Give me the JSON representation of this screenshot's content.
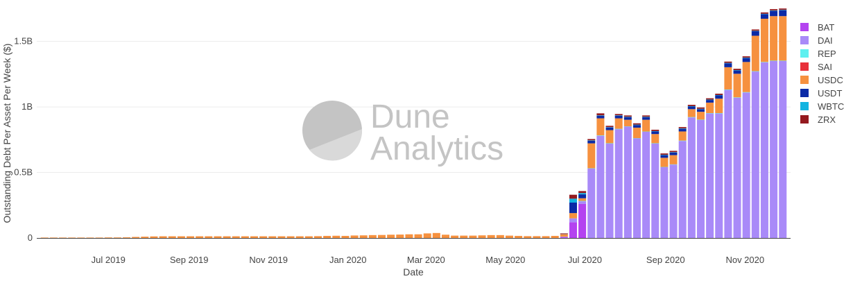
{
  "watermark": {
    "line1": "Dune",
    "line2": "Analytics"
  },
  "colors": {
    "BAT": "#b443f0",
    "DAI": "#a98af8",
    "REP": "#5ef0f0",
    "SAI": "#e8303a",
    "USDC": "#f6913f",
    "USDT": "#0b2aa6",
    "WBTC": "#12b3e0",
    "ZRX": "#941a1f"
  },
  "chart_data": {
    "type": "bar",
    "stacked": true,
    "title": "",
    "xlabel": "Date",
    "ylabel": "Outstanding Debt Per Asset Per Week ($)",
    "ylim": [
      0,
      1800000000
    ],
    "yticks": [
      0,
      500000000,
      1000000000,
      1500000000
    ],
    "ytick_labels": [
      "0",
      "0.5B",
      "1B",
      "1.5B"
    ],
    "xtick_labels": [
      "Jul 2019",
      "Sep 2019",
      "Nov 2019",
      "Jan 2020",
      "Mar 2020",
      "May 2020",
      "Jul 2020",
      "Sep 2020",
      "Nov 2020"
    ],
    "xtick_dates": [
      "2019-07-01",
      "2019-09-01",
      "2019-11-01",
      "2020-01-01",
      "2020-03-01",
      "2020-05-01",
      "2020-07-01",
      "2020-09-01",
      "2020-11-01"
    ],
    "x_range": [
      "2019-05-07",
      "2020-12-06"
    ],
    "grid": true,
    "legend_position": "right",
    "x": [
      "2019-05-13",
      "2019-05-20",
      "2019-05-27",
      "2019-06-03",
      "2019-06-10",
      "2019-06-17",
      "2019-06-24",
      "2019-07-01",
      "2019-07-08",
      "2019-07-15",
      "2019-07-22",
      "2019-07-29",
      "2019-08-05",
      "2019-08-12",
      "2019-08-19",
      "2019-08-26",
      "2019-09-02",
      "2019-09-09",
      "2019-09-16",
      "2019-09-23",
      "2019-09-30",
      "2019-10-07",
      "2019-10-14",
      "2019-10-21",
      "2019-10-28",
      "2019-11-04",
      "2019-11-11",
      "2019-11-18",
      "2019-11-25",
      "2019-12-02",
      "2019-12-09",
      "2019-12-16",
      "2019-12-23",
      "2019-12-30",
      "2020-01-06",
      "2020-01-13",
      "2020-01-20",
      "2020-01-27",
      "2020-02-03",
      "2020-02-10",
      "2020-02-17",
      "2020-02-24",
      "2020-03-02",
      "2020-03-09",
      "2020-03-16",
      "2020-03-23",
      "2020-03-30",
      "2020-04-06",
      "2020-04-13",
      "2020-04-20",
      "2020-04-27",
      "2020-05-04",
      "2020-05-11",
      "2020-05-18",
      "2020-05-25",
      "2020-06-01",
      "2020-06-08",
      "2020-06-15",
      "2020-06-22",
      "2020-06-29",
      "2020-07-06",
      "2020-07-13",
      "2020-07-20",
      "2020-07-27",
      "2020-08-03",
      "2020-08-10",
      "2020-08-17",
      "2020-08-24",
      "2020-08-31",
      "2020-09-07",
      "2020-09-14",
      "2020-09-21",
      "2020-09-28",
      "2020-10-05",
      "2020-10-12",
      "2020-10-19",
      "2020-10-26",
      "2020-11-02",
      "2020-11-09",
      "2020-11-16",
      "2020-11-23",
      "2020-11-30"
    ],
    "series": [
      {
        "name": "BAT",
        "values": [
          0,
          0,
          0,
          0,
          0,
          0,
          0,
          0,
          0,
          0,
          0,
          0,
          0,
          0,
          0,
          0,
          0,
          0,
          0,
          0,
          0,
          0,
          0,
          0,
          0,
          0,
          0,
          0,
          0,
          0,
          0,
          0,
          0,
          0,
          0,
          0,
          0,
          0,
          0,
          0,
          0,
          0,
          0,
          0,
          0,
          0,
          0,
          0,
          0,
          0,
          0,
          0,
          0,
          0,
          0,
          0,
          0,
          5000000,
          120000000,
          260000000,
          0,
          0,
          0,
          0,
          0,
          0,
          0,
          0,
          0,
          0,
          0,
          0,
          0,
          0,
          0,
          0,
          0,
          0,
          0,
          0,
          0,
          0
        ]
      },
      {
        "name": "DAI",
        "values": [
          0,
          0,
          0,
          0,
          0,
          0,
          0,
          0,
          0,
          0,
          0,
          0,
          0,
          0,
          0,
          0,
          0,
          0,
          0,
          0,
          0,
          0,
          0,
          0,
          0,
          0,
          0,
          0,
          0,
          0,
          0,
          0,
          0,
          0,
          0,
          0,
          0,
          0,
          0,
          0,
          0,
          0,
          0,
          0,
          0,
          0,
          0,
          0,
          0,
          0,
          0,
          0,
          0,
          0,
          0,
          0,
          0,
          5000000,
          30000000,
          20000000,
          530000000,
          780000000,
          720000000,
          830000000,
          850000000,
          760000000,
          810000000,
          720000000,
          540000000,
          560000000,
          740000000,
          920000000,
          900000000,
          950000000,
          950000000,
          1130000000,
          1070000000,
          1110000000,
          1270000000,
          1340000000,
          1350000000,
          1350000000
        ]
      },
      {
        "name": "REP",
        "values": [
          0,
          0,
          0,
          0,
          0,
          0,
          0,
          0,
          0,
          0,
          0,
          0,
          0,
          0,
          0,
          0,
          0,
          0,
          0,
          0,
          0,
          0,
          0,
          0,
          0,
          0,
          0,
          0,
          0,
          0,
          0,
          0,
          0,
          0,
          0,
          0,
          0,
          0,
          0,
          0,
          0,
          0,
          0,
          0,
          0,
          0,
          0,
          0,
          0,
          0,
          0,
          0,
          0,
          0,
          0,
          0,
          0,
          0,
          0,
          3000000,
          2000000,
          3000000,
          3000000,
          3000000,
          2000000,
          2000000,
          2000000,
          3000000,
          2000000,
          2000000,
          3000000,
          3000000,
          3000000,
          3000000,
          3000000,
          3000000,
          3000000,
          3000000,
          3000000,
          3000000,
          3000000,
          3000000
        ]
      },
      {
        "name": "SAI",
        "values": [
          0,
          0,
          0,
          0,
          0,
          0,
          0,
          0,
          0,
          0,
          0,
          0,
          0,
          0,
          0,
          0,
          0,
          0,
          0,
          0,
          0,
          0,
          0,
          0,
          0,
          0,
          0,
          0,
          0,
          0,
          0,
          0,
          0,
          0,
          0,
          0,
          0,
          0,
          0,
          0,
          0,
          0,
          0,
          0,
          0,
          0,
          0,
          0,
          0,
          0,
          0,
          0,
          0,
          0,
          0,
          0,
          0,
          0,
          0,
          0,
          0,
          0,
          0,
          0,
          0,
          0,
          0,
          0,
          0,
          0,
          0,
          0,
          0,
          0,
          0,
          0,
          0,
          0,
          0,
          0,
          0,
          0
        ]
      },
      {
        "name": "USDC",
        "values": [
          1000000,
          1000000,
          1500000,
          2000000,
          2000000,
          3000000,
          3000000,
          4000000,
          4000000,
          5000000,
          8000000,
          10000000,
          12000000,
          13000000,
          13000000,
          13000000,
          13000000,
          13000000,
          13000000,
          13000000,
          13000000,
          13000000,
          13000000,
          13000000,
          13000000,
          13000000,
          13000000,
          13000000,
          13000000,
          13000000,
          14000000,
          16000000,
          17000000,
          16000000,
          19000000,
          20000000,
          22000000,
          23000000,
          25000000,
          26000000,
          28000000,
          28000000,
          35000000,
          38000000,
          25000000,
          18000000,
          18000000,
          18000000,
          20000000,
          22000000,
          22000000,
          18000000,
          16000000,
          14000000,
          14000000,
          14000000,
          16000000,
          20000000,
          40000000,
          20000000,
          190000000,
          130000000,
          100000000,
          80000000,
          50000000,
          80000000,
          90000000,
          70000000,
          70000000,
          70000000,
          70000000,
          60000000,
          60000000,
          80000000,
          110000000,
          170000000,
          180000000,
          230000000,
          270000000,
          330000000,
          340000000,
          340000000
        ]
      },
      {
        "name": "USDT",
        "values": [
          0,
          0,
          0,
          0,
          0,
          0,
          0,
          0,
          0,
          0,
          0,
          0,
          0,
          0,
          0,
          0,
          0,
          0,
          0,
          0,
          0,
          0,
          0,
          0,
          0,
          0,
          0,
          0,
          0,
          0,
          0,
          0,
          0,
          0,
          0,
          0,
          0,
          0,
          0,
          0,
          0,
          0,
          0,
          0,
          0,
          0,
          0,
          0,
          0,
          0,
          0,
          0,
          0,
          0,
          0,
          0,
          0,
          2000000,
          80000000,
          30000000,
          20000000,
          20000000,
          20000000,
          20000000,
          20000000,
          20000000,
          20000000,
          20000000,
          20000000,
          20000000,
          20000000,
          20000000,
          20000000,
          20000000,
          25000000,
          30000000,
          25000000,
          30000000,
          35000000,
          35000000,
          40000000,
          45000000
        ]
      },
      {
        "name": "WBTC",
        "values": [
          0,
          0,
          0,
          0,
          0,
          0,
          0,
          0,
          0,
          0,
          0,
          0,
          0,
          0,
          0,
          0,
          0,
          0,
          0,
          0,
          0,
          0,
          0,
          0,
          0,
          0,
          0,
          0,
          0,
          0,
          0,
          0,
          0,
          0,
          0,
          0,
          0,
          0,
          0,
          0,
          0,
          0,
          0,
          0,
          0,
          0,
          0,
          0,
          0,
          0,
          0,
          0,
          0,
          0,
          0,
          0,
          0,
          0,
          30000000,
          10000000,
          3000000,
          3000000,
          3000000,
          3000000,
          3000000,
          3000000,
          3000000,
          3000000,
          3000000,
          3000000,
          3000000,
          3000000,
          3000000,
          3000000,
          3000000,
          3000000,
          3000000,
          3000000,
          3000000,
          3000000,
          3000000,
          3000000
        ]
      },
      {
        "name": "ZRX",
        "values": [
          0,
          0,
          0,
          0,
          0,
          0,
          0,
          0,
          0,
          0,
          0,
          0,
          0,
          0,
          0,
          0,
          0,
          0,
          0,
          0,
          0,
          0,
          0,
          0,
          0,
          0,
          0,
          0,
          0,
          0,
          0,
          0,
          0,
          0,
          0,
          0,
          0,
          0,
          0,
          0,
          0,
          0,
          0,
          0,
          0,
          0,
          0,
          0,
          0,
          0,
          0,
          0,
          0,
          0,
          0,
          0,
          0,
          3000000,
          30000000,
          15000000,
          10000000,
          15000000,
          10000000,
          10000000,
          10000000,
          10000000,
          10000000,
          10000000,
          10000000,
          10000000,
          10000000,
          10000000,
          10000000,
          10000000,
          10000000,
          10000000,
          10000000,
          10000000,
          10000000,
          10000000,
          10000000,
          10000000
        ]
      }
    ]
  }
}
